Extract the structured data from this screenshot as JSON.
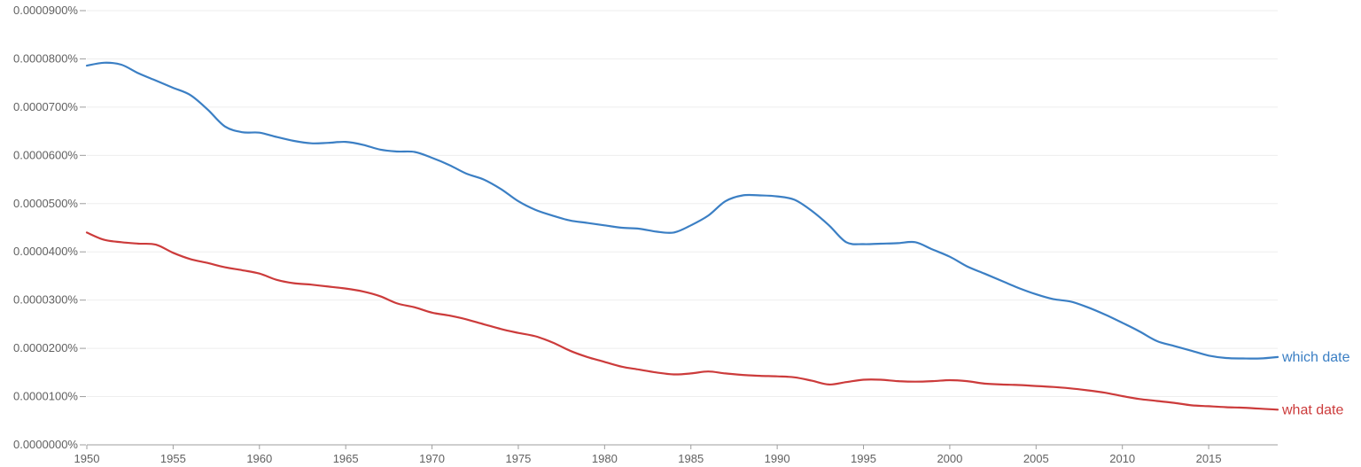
{
  "chart_data": {
    "type": "line",
    "title": "",
    "xlabel": "",
    "ylabel": "",
    "xlim": [
      1950,
      2019
    ],
    "ylim": [
      0,
      9e-07
    ],
    "y_tick_values": [
      0,
      1e-07,
      2e-07,
      3e-07,
      4e-07,
      5e-07,
      6e-07,
      7e-07,
      8e-07,
      9e-07
    ],
    "y_tick_labels": [
      "0.0000000%",
      "0.0000100%",
      "0.0000200%",
      "0.0000300%",
      "0.0000400%",
      "0.0000500%",
      "0.0000600%",
      "0.0000700%",
      "0.0000800%",
      "0.0000900%"
    ],
    "x_tick_values": [
      1950,
      1955,
      1960,
      1965,
      1970,
      1975,
      1980,
      1985,
      1990,
      1995,
      2000,
      2005,
      2010,
      2015
    ],
    "x_tick_labels": [
      "1950",
      "1955",
      "1960",
      "1965",
      "1970",
      "1975",
      "1980",
      "1985",
      "1990",
      "1995",
      "2000",
      "2005",
      "2010",
      "2015"
    ],
    "grid": true,
    "legend": "inline at line ends",
    "x": [
      1950,
      1951,
      1952,
      1953,
      1954,
      1955,
      1956,
      1957,
      1958,
      1959,
      1960,
      1961,
      1962,
      1963,
      1964,
      1965,
      1966,
      1967,
      1968,
      1969,
      1970,
      1971,
      1972,
      1973,
      1974,
      1975,
      1976,
      1977,
      1978,
      1979,
      1980,
      1981,
      1982,
      1983,
      1984,
      1985,
      1986,
      1987,
      1988,
      1989,
      1990,
      1991,
      1992,
      1993,
      1994,
      1995,
      1996,
      1997,
      1998,
      1999,
      2000,
      2001,
      2002,
      2003,
      2004,
      2005,
      2006,
      2007,
      2008,
      2009,
      2010,
      2011,
      2012,
      2013,
      2014,
      2015,
      2016,
      2017,
      2018,
      2019
    ],
    "series": [
      {
        "name": "which date",
        "color": "#3b7fc4",
        "values": [
          7.86e-07,
          7.92e-07,
          7.88e-07,
          7.7e-07,
          7.55e-07,
          7.4e-07,
          7.25e-07,
          6.95e-07,
          6.6e-07,
          6.48e-07,
          6.47e-07,
          6.38e-07,
          6.3e-07,
          6.25e-07,
          6.26e-07,
          6.28e-07,
          6.22e-07,
          6.12e-07,
          6.08e-07,
          6.07e-07,
          5.95e-07,
          5.8e-07,
          5.62e-07,
          5.5e-07,
          5.3e-07,
          5.05e-07,
          4.87e-07,
          4.75e-07,
          4.65e-07,
          4.6e-07,
          4.55e-07,
          4.5e-07,
          4.48e-07,
          4.42e-07,
          4.4e-07,
          4.55e-07,
          4.75e-07,
          5.05e-07,
          5.17e-07,
          5.17e-07,
          5.15e-07,
          5.08e-07,
          4.85e-07,
          4.55e-07,
          4.2e-07,
          4.16e-07,
          4.17e-07,
          4.18e-07,
          4.2e-07,
          4.05e-07,
          3.9e-07,
          3.7e-07,
          3.55e-07,
          3.4e-07,
          3.25e-07,
          3.12e-07,
          3.02e-07,
          2.97e-07,
          2.85e-07,
          2.7e-07,
          2.53e-07,
          2.35e-07,
          2.15e-07,
          2.05e-07,
          1.95e-07,
          1.85e-07,
          1.8e-07,
          1.79e-07,
          1.79e-07,
          1.82e-07
        ]
      },
      {
        "name": "what date",
        "color": "#cc3b3b",
        "values": [
          4.4e-07,
          4.25e-07,
          4.2e-07,
          4.17e-07,
          4.15e-07,
          3.98e-07,
          3.85e-07,
          3.77e-07,
          3.68e-07,
          3.62e-07,
          3.55e-07,
          3.42e-07,
          3.35e-07,
          3.32e-07,
          3.28e-07,
          3.24e-07,
          3.18e-07,
          3.08e-07,
          2.93e-07,
          2.85e-07,
          2.74e-07,
          2.68e-07,
          2.6e-07,
          2.5e-07,
          2.4e-07,
          2.32e-07,
          2.25e-07,
          2.12e-07,
          1.95e-07,
          1.82e-07,
          1.72e-07,
          1.62e-07,
          1.56e-07,
          1.5e-07,
          1.46e-07,
          1.48e-07,
          1.52e-07,
          1.48e-07,
          1.45e-07,
          1.43e-07,
          1.42e-07,
          1.4e-07,
          1.33e-07,
          1.25e-07,
          1.3e-07,
          1.35e-07,
          1.35e-07,
          1.32e-07,
          1.31e-07,
          1.32e-07,
          1.34e-07,
          1.32e-07,
          1.27e-07,
          1.25e-07,
          1.24e-07,
          1.22e-07,
          1.2e-07,
          1.17e-07,
          1.13e-07,
          1.08e-07,
          1.01e-07,
          9.5e-08,
          9.1e-08,
          8.7e-08,
          8.2e-08,
          8e-08,
          7.8e-08,
          7.7e-08,
          7.5e-08,
          7.3e-08
        ]
      }
    ]
  }
}
